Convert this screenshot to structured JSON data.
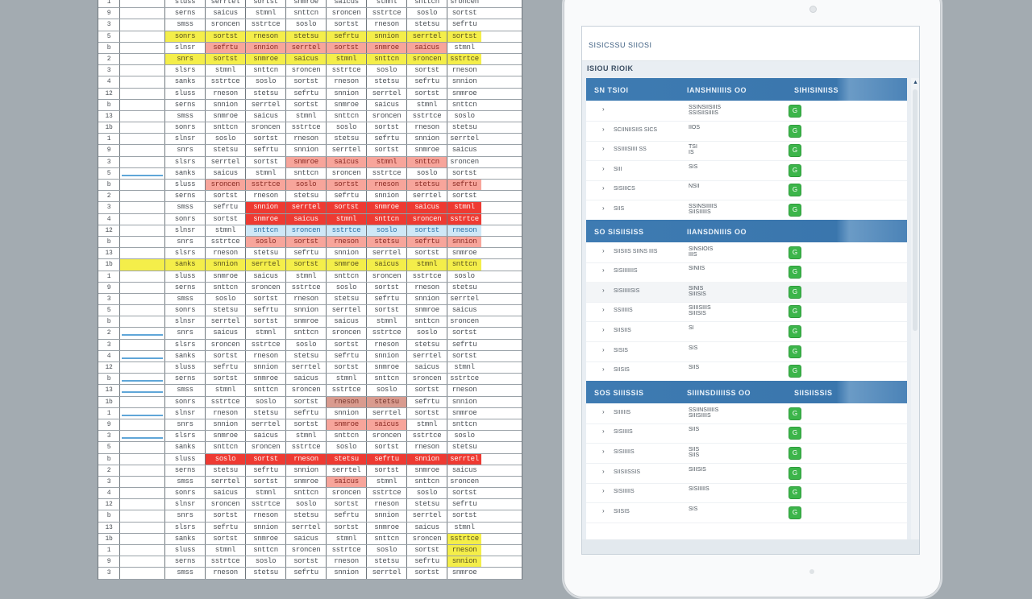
{
  "spreadsheet": {
    "cell_text": [
      "stetsu",
      "sefrtu",
      "snnion",
      "serrtel",
      "sortst",
      "snmroe",
      "saicus",
      "stmnl",
      "snttcn",
      "sroncen",
      "sstrtce",
      "soslo",
      "sortst",
      "rneson"
    ],
    "left_text": [
      "slsrs",
      "sanks",
      "sluss",
      "serns",
      "smss",
      "sonrs",
      "slnsr",
      "snrs"
    ],
    "row_index": [
      "1",
      "9",
      "3",
      "5",
      "b",
      "2",
      "3",
      "4",
      "12",
      "b",
      "13",
      "1b"
    ],
    "highlights": [
      {
        "row": 3,
        "cols": [
          2,
          3,
          4,
          5,
          6,
          7,
          8,
          9
        ],
        "style": "yellow"
      },
      {
        "row": 4,
        "cols": [
          3,
          4,
          5,
          6,
          7,
          8
        ],
        "style": "lred"
      },
      {
        "row": 5,
        "cols": [
          2,
          3,
          4,
          5,
          6,
          7,
          8,
          9
        ],
        "style": "yellow"
      },
      {
        "row": 14,
        "cols": [
          5,
          6,
          7,
          8
        ],
        "style": "lred"
      },
      {
        "row": 16,
        "cols": [
          3,
          4,
          5,
          6,
          7,
          8,
          9
        ],
        "style": "lred"
      },
      {
        "row": 18,
        "cols": [
          4,
          5,
          6,
          7,
          8,
          9
        ],
        "style": "red"
      },
      {
        "row": 19,
        "cols": [
          4,
          5,
          6,
          7,
          8,
          9
        ],
        "style": "red"
      },
      {
        "row": 20,
        "cols": [
          4,
          5,
          6,
          7,
          8,
          9
        ],
        "style": "blue"
      },
      {
        "row": 21,
        "cols": [
          4,
          5,
          6,
          7,
          8,
          9
        ],
        "style": "lred"
      },
      {
        "row": 23,
        "cols": [
          1,
          2,
          3,
          4,
          5,
          6,
          7,
          8,
          9
        ],
        "style": "yellow"
      },
      {
        "row": 35,
        "cols": [
          6,
          7
        ],
        "style": "tan"
      },
      {
        "row": 37,
        "cols": [
          6,
          7
        ],
        "style": "lred"
      },
      {
        "row": 40,
        "cols": [
          3,
          4,
          5,
          6,
          7,
          8,
          9
        ],
        "style": "red"
      },
      {
        "row": 42,
        "cols": [
          6
        ],
        "style": "lred"
      },
      {
        "row": 47,
        "cols": [
          9
        ],
        "style": "yellow"
      },
      {
        "row": 48,
        "cols": [
          9
        ],
        "style": "yellow"
      },
      {
        "row": 49,
        "cols": [
          9
        ],
        "style": "yellow"
      }
    ],
    "blue_line_rows": [
      15,
      29,
      31,
      33,
      34,
      36,
      38
    ]
  },
  "tablet": {
    "app_title": "SISICSSU SIIOSI",
    "app_subtitle": "ISIOU RIOIK",
    "sections": [
      {
        "h1": "SN TSIOI",
        "h2": "IANSHNIIIIS OO",
        "h3": "SIHISINIISS",
        "rows": [
          {
            "name": "",
            "value": "SSINSIISIIIS\nSSISIISIIIIS"
          },
          {
            "name": "SCIINIISIIS SICS",
            "value": "IIOS"
          },
          {
            "name": "SSIIIISIIII SS",
            "value": "TSI\nIS"
          },
          {
            "name": "SIII",
            "value": "SIS"
          },
          {
            "name": "SISIIICS",
            "value": "NSII"
          },
          {
            "name": "SIIS",
            "value": "SSINSIIIIIS\nSIISIIIIIS"
          }
        ]
      },
      {
        "h1": "SO SISIISISS",
        "h2": "IIANSDNIIIS OO",
        "h3": "",
        "rows": [
          {
            "name": "SIISIIS\nSIINS IIIS",
            "value": "SINSIOIS\nIIIS"
          },
          {
            "name": "SISIIIIIIIS",
            "value": "SINIIS"
          },
          {
            "name": "SISIIIIISIS",
            "value": "SINIS\nSIIISIS"
          },
          {
            "name": "SSIIIIIS",
            "value": "SIIIISIIIS\nSIIISIS"
          },
          {
            "name": "SIISIIS",
            "value": "SI"
          },
          {
            "name": "SISIS",
            "value": "SIS"
          },
          {
            "name": "SIISIS",
            "value": "SIIS"
          }
        ]
      },
      {
        "h1": "SOS SIIISSIS",
        "h2": "SIIINSDIIIISS OO",
        "h3": "SIISIISSIS",
        "rows": [
          {
            "name": "SIIIIIIS",
            "value": "SSIINSIIIIIS\nSIIISIIIIS"
          },
          {
            "name": "SISIIIIS",
            "value": "SIIS"
          },
          {
            "name": "SISIIIIIS",
            "value": "SIIS\nSIIS"
          },
          {
            "name": "SIISIISSIS",
            "value": "SIIISIS"
          },
          {
            "name": "SISIIIIIS",
            "value": "SISIIIIIS"
          },
          {
            "name": "SIISIS",
            "value": "SIS"
          }
        ]
      }
    ],
    "badge_glyph": "G",
    "row_arrow": "›",
    "scroll_up_glyph": "▲",
    "scroll_down_glyph": "▼"
  },
  "colors": {
    "background": "#a3abb1",
    "header_blue": "#3e7bb2",
    "badge_green": "#3cb54a",
    "highlight_red": "#ee3a32",
    "highlight_yellow": "#f4ee4a"
  }
}
